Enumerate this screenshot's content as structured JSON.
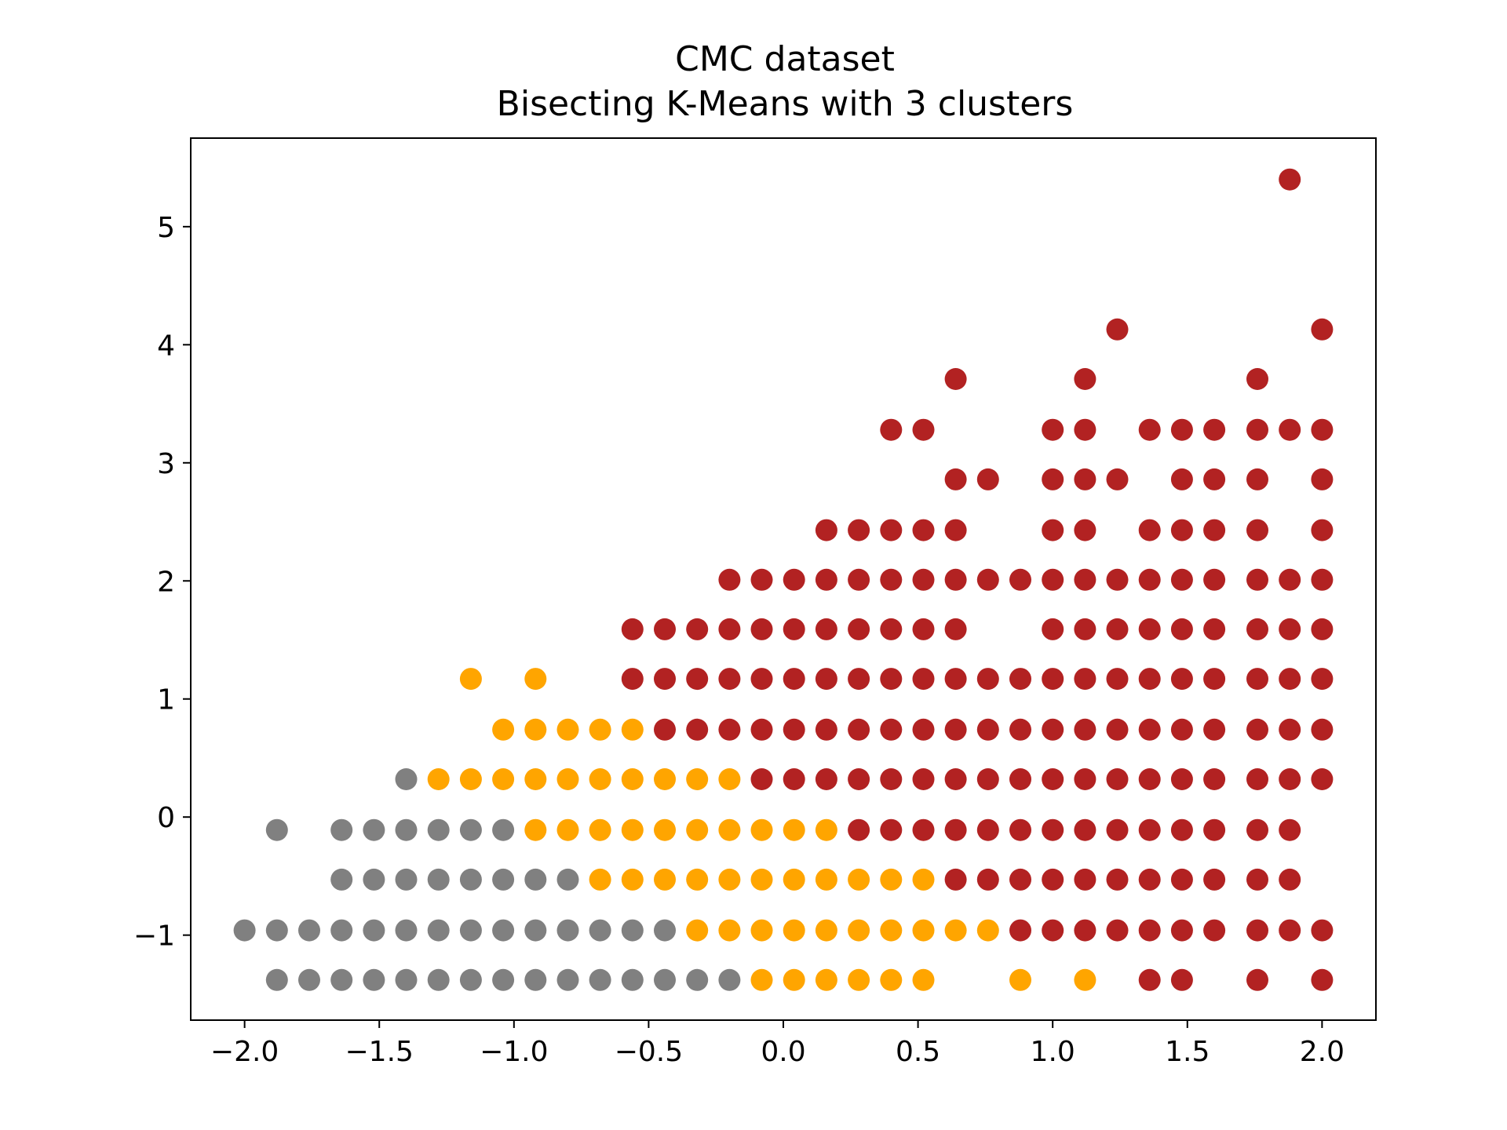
{
  "chart_data": {
    "type": "scatter",
    "title": "CMC dataset",
    "subtitle": "Bisecting K-Means with 3 clusters",
    "xlabel": "",
    "ylabel": "",
    "xlim": [
      -2.2,
      2.2
    ],
    "ylim": [
      -1.72,
      5.75
    ],
    "grid": false,
    "x_ticks": [
      -2.0,
      -1.5,
      -1.0,
      -0.5,
      0.0,
      0.5,
      1.0,
      1.5,
      2.0
    ],
    "x_tick_labels": [
      "−2.0",
      "−1.5",
      "−1.0",
      "−0.5",
      "0.0",
      "0.5",
      "1.0",
      "1.5",
      "2.0"
    ],
    "y_ticks": [
      -1,
      0,
      1,
      2,
      3,
      4,
      5
    ],
    "y_tick_labels": [
      "−1",
      "0",
      "1",
      "2",
      "3",
      "4",
      "5"
    ],
    "series": [
      {
        "color": "#808080",
        "points": [
          [
            -1.4,
            0.32
          ],
          [
            -1.88,
            -0.11
          ],
          [
            -1.64,
            -0.11
          ],
          [
            -1.52,
            -0.11
          ],
          [
            -1.4,
            -0.11
          ],
          [
            -1.28,
            -0.11
          ],
          [
            -1.16,
            -0.11
          ],
          [
            -1.04,
            -0.11
          ],
          [
            -1.64,
            -0.53
          ],
          [
            -1.52,
            -0.53
          ],
          [
            -1.4,
            -0.53
          ],
          [
            -1.28,
            -0.53
          ],
          [
            -1.16,
            -0.53
          ],
          [
            -1.04,
            -0.53
          ],
          [
            -0.92,
            -0.53
          ],
          [
            -0.8,
            -0.53
          ],
          [
            -2.0,
            -0.96
          ],
          [
            -1.88,
            -0.96
          ],
          [
            -1.76,
            -0.96
          ],
          [
            -1.64,
            -0.96
          ],
          [
            -1.52,
            -0.96
          ],
          [
            -1.4,
            -0.96
          ],
          [
            -1.28,
            -0.96
          ],
          [
            -1.16,
            -0.96
          ],
          [
            -1.04,
            -0.96
          ],
          [
            -0.92,
            -0.96
          ],
          [
            -0.8,
            -0.96
          ],
          [
            -0.68,
            -0.96
          ],
          [
            -0.56,
            -0.96
          ],
          [
            -0.44,
            -0.96
          ],
          [
            -1.88,
            -1.38
          ],
          [
            -1.76,
            -1.38
          ],
          [
            -1.64,
            -1.38
          ],
          [
            -1.52,
            -1.38
          ],
          [
            -1.4,
            -1.38
          ],
          [
            -1.28,
            -1.38
          ],
          [
            -1.16,
            -1.38
          ],
          [
            -1.04,
            -1.38
          ],
          [
            -0.92,
            -1.38
          ],
          [
            -0.8,
            -1.38
          ],
          [
            -0.68,
            -1.38
          ],
          [
            -0.56,
            -1.38
          ],
          [
            -0.44,
            -1.38
          ],
          [
            -0.32,
            -1.38
          ],
          [
            -0.2,
            -1.38
          ]
        ]
      },
      {
        "color": "#ffa500",
        "points": [
          [
            -1.16,
            1.17
          ],
          [
            -0.92,
            1.17
          ],
          [
            -1.04,
            0.74
          ],
          [
            -0.92,
            0.74
          ],
          [
            -0.8,
            0.74
          ],
          [
            -0.68,
            0.74
          ],
          [
            -0.56,
            0.74
          ],
          [
            -1.28,
            0.32
          ],
          [
            -1.16,
            0.32
          ],
          [
            -1.04,
            0.32
          ],
          [
            -0.92,
            0.32
          ],
          [
            -0.8,
            0.32
          ],
          [
            -0.68,
            0.32
          ],
          [
            -0.56,
            0.32
          ],
          [
            -0.44,
            0.32
          ],
          [
            -0.32,
            0.32
          ],
          [
            -0.2,
            0.32
          ],
          [
            -0.92,
            -0.11
          ],
          [
            -0.8,
            -0.11
          ],
          [
            -0.68,
            -0.11
          ],
          [
            -0.56,
            -0.11
          ],
          [
            -0.44,
            -0.11
          ],
          [
            -0.32,
            -0.11
          ],
          [
            -0.2,
            -0.11
          ],
          [
            -0.08,
            -0.11
          ],
          [
            0.04,
            -0.11
          ],
          [
            0.16,
            -0.11
          ],
          [
            -0.68,
            -0.53
          ],
          [
            -0.56,
            -0.53
          ],
          [
            -0.44,
            -0.53
          ],
          [
            -0.32,
            -0.53
          ],
          [
            -0.2,
            -0.53
          ],
          [
            -0.08,
            -0.53
          ],
          [
            0.04,
            -0.53
          ],
          [
            0.16,
            -0.53
          ],
          [
            0.28,
            -0.53
          ],
          [
            0.4,
            -0.53
          ],
          [
            0.52,
            -0.53
          ],
          [
            -0.32,
            -0.96
          ],
          [
            -0.2,
            -0.96
          ],
          [
            -0.08,
            -0.96
          ],
          [
            0.04,
            -0.96
          ],
          [
            0.16,
            -0.96
          ],
          [
            0.28,
            -0.96
          ],
          [
            0.4,
            -0.96
          ],
          [
            0.52,
            -0.96
          ],
          [
            0.64,
            -0.96
          ],
          [
            0.76,
            -0.96
          ],
          [
            -0.08,
            -1.38
          ],
          [
            0.04,
            -1.38
          ],
          [
            0.16,
            -1.38
          ],
          [
            0.28,
            -1.38
          ],
          [
            0.4,
            -1.38
          ],
          [
            0.52,
            -1.38
          ],
          [
            0.88,
            -1.38
          ],
          [
            1.12,
            -1.38
          ]
        ]
      },
      {
        "color": "#b22222",
        "points": [
          [
            1.88,
            5.4
          ],
          [
            1.24,
            4.13
          ],
          [
            2.0,
            4.13
          ],
          [
            0.64,
            3.71
          ],
          [
            1.12,
            3.71
          ],
          [
            1.76,
            3.71
          ],
          [
            0.4,
            3.28
          ],
          [
            0.52,
            3.28
          ],
          [
            1.0,
            3.28
          ],
          [
            1.12,
            3.28
          ],
          [
            1.36,
            3.28
          ],
          [
            1.48,
            3.28
          ],
          [
            1.6,
            3.28
          ],
          [
            1.76,
            3.28
          ],
          [
            1.88,
            3.28
          ],
          [
            2.0,
            3.28
          ],
          [
            0.64,
            2.86
          ],
          [
            0.76,
            2.86
          ],
          [
            1.0,
            2.86
          ],
          [
            1.12,
            2.86
          ],
          [
            1.24,
            2.86
          ],
          [
            1.48,
            2.86
          ],
          [
            1.6,
            2.86
          ],
          [
            1.76,
            2.86
          ],
          [
            2.0,
            2.86
          ],
          [
            0.16,
            2.43
          ],
          [
            0.28,
            2.43
          ],
          [
            0.4,
            2.43
          ],
          [
            0.52,
            2.43
          ],
          [
            0.64,
            2.43
          ],
          [
            1.0,
            2.43
          ],
          [
            1.12,
            2.43
          ],
          [
            1.36,
            2.43
          ],
          [
            1.48,
            2.43
          ],
          [
            1.6,
            2.43
          ],
          [
            1.76,
            2.43
          ],
          [
            2.0,
            2.43
          ],
          [
            -0.2,
            2.01
          ],
          [
            -0.08,
            2.01
          ],
          [
            0.04,
            2.01
          ],
          [
            0.16,
            2.01
          ],
          [
            0.28,
            2.01
          ],
          [
            0.4,
            2.01
          ],
          [
            0.52,
            2.01
          ],
          [
            0.64,
            2.01
          ],
          [
            0.76,
            2.01
          ],
          [
            0.88,
            2.01
          ],
          [
            1.0,
            2.01
          ],
          [
            1.12,
            2.01
          ],
          [
            1.24,
            2.01
          ],
          [
            1.36,
            2.01
          ],
          [
            1.48,
            2.01
          ],
          [
            1.6,
            2.01
          ],
          [
            1.76,
            2.01
          ],
          [
            1.88,
            2.01
          ],
          [
            2.0,
            2.01
          ],
          [
            -0.56,
            1.59
          ],
          [
            -0.44,
            1.59
          ],
          [
            -0.32,
            1.59
          ],
          [
            -0.2,
            1.59
          ],
          [
            -0.08,
            1.59
          ],
          [
            0.04,
            1.59
          ],
          [
            0.16,
            1.59
          ],
          [
            0.28,
            1.59
          ],
          [
            0.4,
            1.59
          ],
          [
            0.52,
            1.59
          ],
          [
            0.64,
            1.59
          ],
          [
            1.0,
            1.59
          ],
          [
            1.12,
            1.59
          ],
          [
            1.24,
            1.59
          ],
          [
            1.36,
            1.59
          ],
          [
            1.48,
            1.59
          ],
          [
            1.6,
            1.59
          ],
          [
            1.76,
            1.59
          ],
          [
            1.88,
            1.59
          ],
          [
            2.0,
            1.59
          ],
          [
            -0.56,
            1.17
          ],
          [
            -0.44,
            1.17
          ],
          [
            -0.32,
            1.17
          ],
          [
            -0.2,
            1.17
          ],
          [
            -0.08,
            1.17
          ],
          [
            0.04,
            1.17
          ],
          [
            0.16,
            1.17
          ],
          [
            0.28,
            1.17
          ],
          [
            0.4,
            1.17
          ],
          [
            0.52,
            1.17
          ],
          [
            0.64,
            1.17
          ],
          [
            0.76,
            1.17
          ],
          [
            0.88,
            1.17
          ],
          [
            1.0,
            1.17
          ],
          [
            1.12,
            1.17
          ],
          [
            1.24,
            1.17
          ],
          [
            1.36,
            1.17
          ],
          [
            1.48,
            1.17
          ],
          [
            1.6,
            1.17
          ],
          [
            1.76,
            1.17
          ],
          [
            1.88,
            1.17
          ],
          [
            2.0,
            1.17
          ],
          [
            -0.44,
            0.74
          ],
          [
            -0.32,
            0.74
          ],
          [
            -0.2,
            0.74
          ],
          [
            -0.08,
            0.74
          ],
          [
            0.04,
            0.74
          ],
          [
            0.16,
            0.74
          ],
          [
            0.28,
            0.74
          ],
          [
            0.4,
            0.74
          ],
          [
            0.52,
            0.74
          ],
          [
            0.64,
            0.74
          ],
          [
            0.76,
            0.74
          ],
          [
            0.88,
            0.74
          ],
          [
            1.0,
            0.74
          ],
          [
            1.12,
            0.74
          ],
          [
            1.24,
            0.74
          ],
          [
            1.36,
            0.74
          ],
          [
            1.48,
            0.74
          ],
          [
            1.6,
            0.74
          ],
          [
            1.76,
            0.74
          ],
          [
            1.88,
            0.74
          ],
          [
            2.0,
            0.74
          ],
          [
            -0.08,
            0.32
          ],
          [
            0.04,
            0.32
          ],
          [
            0.16,
            0.32
          ],
          [
            0.28,
            0.32
          ],
          [
            0.4,
            0.32
          ],
          [
            0.52,
            0.32
          ],
          [
            0.64,
            0.32
          ],
          [
            0.76,
            0.32
          ],
          [
            0.88,
            0.32
          ],
          [
            1.0,
            0.32
          ],
          [
            1.12,
            0.32
          ],
          [
            1.24,
            0.32
          ],
          [
            1.36,
            0.32
          ],
          [
            1.48,
            0.32
          ],
          [
            1.6,
            0.32
          ],
          [
            1.76,
            0.32
          ],
          [
            1.88,
            0.32
          ],
          [
            2.0,
            0.32
          ],
          [
            0.28,
            -0.11
          ],
          [
            0.4,
            -0.11
          ],
          [
            0.52,
            -0.11
          ],
          [
            0.64,
            -0.11
          ],
          [
            0.76,
            -0.11
          ],
          [
            0.88,
            -0.11
          ],
          [
            1.0,
            -0.11
          ],
          [
            1.12,
            -0.11
          ],
          [
            1.24,
            -0.11
          ],
          [
            1.36,
            -0.11
          ],
          [
            1.48,
            -0.11
          ],
          [
            1.6,
            -0.11
          ],
          [
            1.76,
            -0.11
          ],
          [
            1.88,
            -0.11
          ],
          [
            0.64,
            -0.53
          ],
          [
            0.76,
            -0.53
          ],
          [
            0.88,
            -0.53
          ],
          [
            1.0,
            -0.53
          ],
          [
            1.12,
            -0.53
          ],
          [
            1.24,
            -0.53
          ],
          [
            1.36,
            -0.53
          ],
          [
            1.48,
            -0.53
          ],
          [
            1.6,
            -0.53
          ],
          [
            1.76,
            -0.53
          ],
          [
            1.88,
            -0.53
          ],
          [
            0.88,
            -0.96
          ],
          [
            1.0,
            -0.96
          ],
          [
            1.12,
            -0.96
          ],
          [
            1.24,
            -0.96
          ],
          [
            1.36,
            -0.96
          ],
          [
            1.48,
            -0.96
          ],
          [
            1.6,
            -0.96
          ],
          [
            1.76,
            -0.96
          ],
          [
            1.88,
            -0.96
          ],
          [
            2.0,
            -0.96
          ],
          [
            1.36,
            -1.38
          ],
          [
            1.48,
            -1.38
          ],
          [
            1.76,
            -1.38
          ],
          [
            2.0,
            -1.38
          ]
        ]
      }
    ]
  }
}
